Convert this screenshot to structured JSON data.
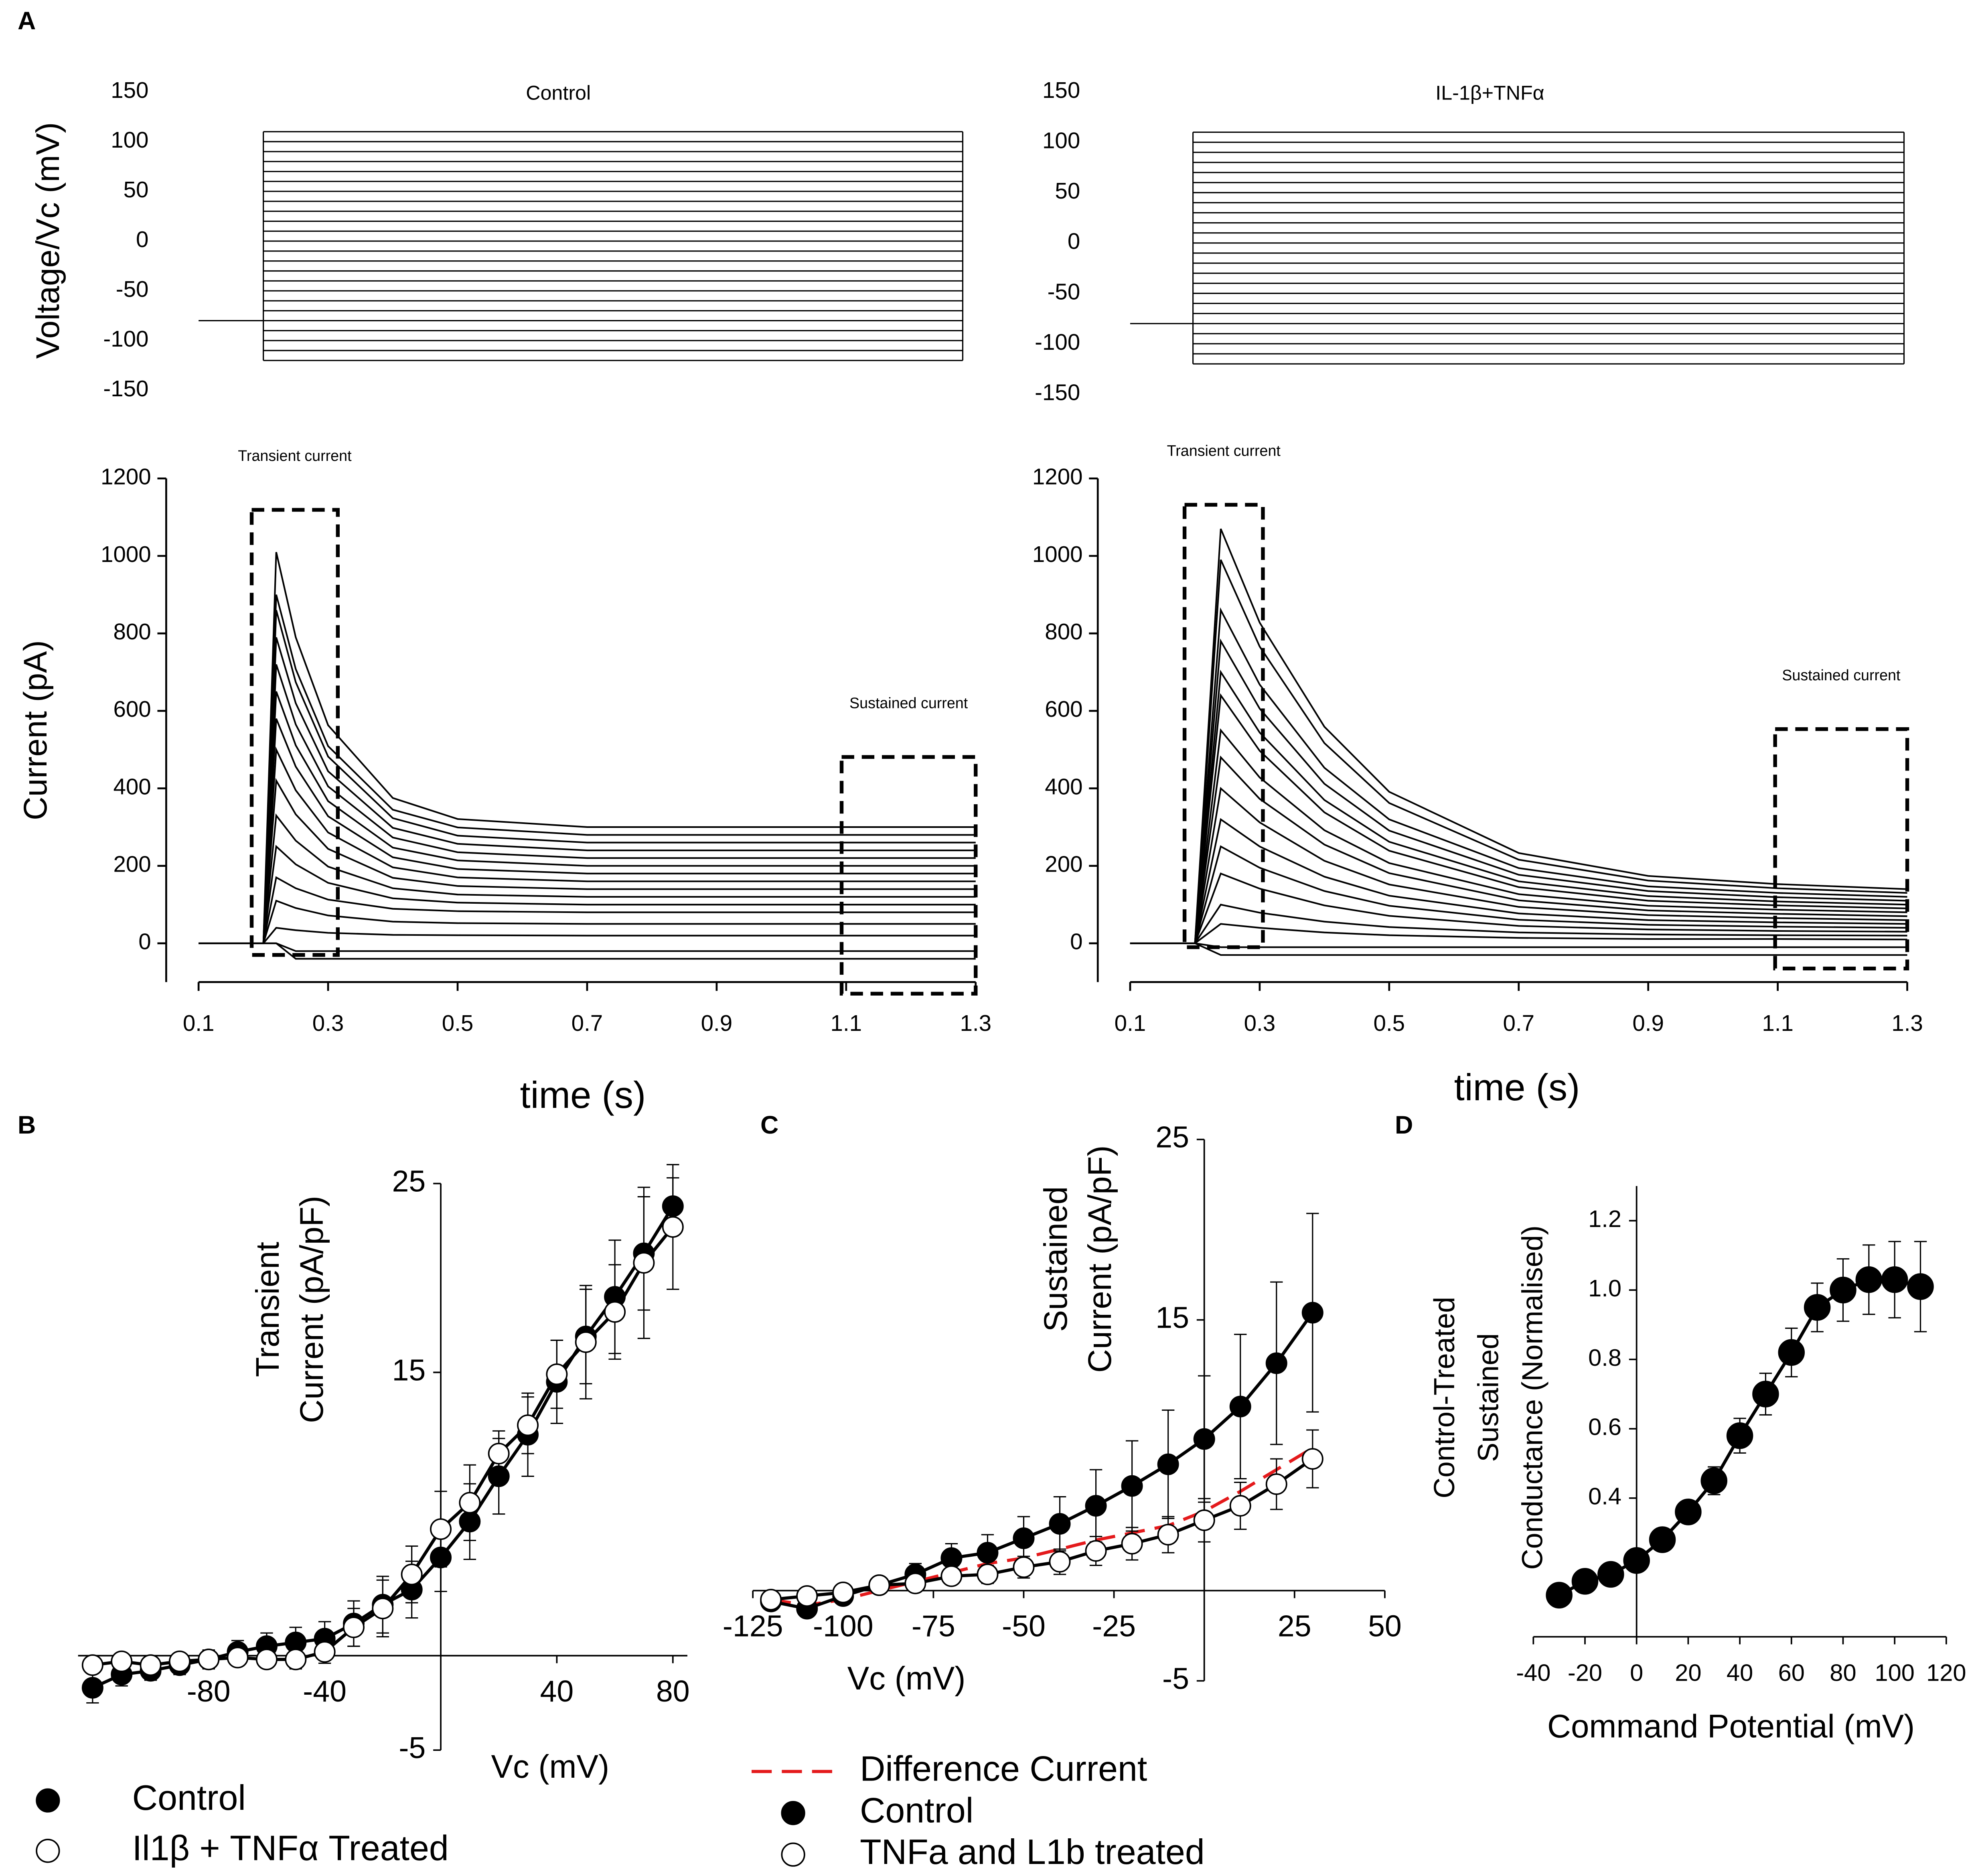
{
  "chart_data": [
    {
      "type": "step_protocol",
      "panel": "A",
      "title": "Control",
      "ylabel": "Voltage/Vc (mV)",
      "xlim": [
        0.05,
        1.3
      ],
      "ylim": [
        -150,
        150
      ],
      "yticks": [
        -150,
        -100,
        -50,
        0,
        50,
        100,
        150
      ],
      "holding": -80,
      "holding_x": [
        0.1,
        0.2
      ],
      "step_x": [
        0.2,
        1.28
      ],
      "steps": [
        -120,
        -110,
        -100,
        -90,
        -80,
        -70,
        -60,
        -50,
        -40,
        -30,
        -20,
        -10,
        0,
        10,
        20,
        30,
        40,
        50,
        60,
        70,
        80,
        90,
        100,
        110
      ],
      "color": "#000000"
    },
    {
      "type": "step_protocol",
      "title": "IL-1β+TNFα",
      "xlim": [
        0.05,
        1.3
      ],
      "ylim": [
        -150,
        150
      ],
      "yticks": [
        -150,
        -100,
        -50,
        0,
        50,
        100,
        150
      ],
      "holding": -80,
      "holding_x": [
        0.1,
        0.197
      ],
      "step_x": [
        0.197,
        1.295
      ],
      "steps": [
        -120,
        -110,
        -100,
        -90,
        -80,
        -70,
        -60,
        -50,
        -40,
        -30,
        -20,
        -10,
        0,
        10,
        20,
        30,
        40,
        50,
        60,
        70,
        80,
        90,
        100,
        110
      ],
      "color": "#000000"
    },
    {
      "type": "line",
      "ylabel": "Current (pA)",
      "xlabel": "time (s)",
      "xlim": [
        0.05,
        1.3
      ],
      "ylim": [
        -100,
        1200
      ],
      "yticks": [
        0,
        200,
        400,
        600,
        800,
        1000,
        1200
      ],
      "xticks": [
        0.1,
        0.3,
        0.5,
        0.7,
        0.9,
        1.1,
        1.3
      ],
      "color": "#000000",
      "x": [
        0.1,
        0.2,
        0.22,
        0.25,
        0.3,
        0.4,
        0.5,
        0.7,
        0.9,
        1.1,
        1.3
      ],
      "series": [
        {
          "values": [
            0,
            0,
            1010,
            790,
            563,
            375,
            321,
            300,
            300,
            300,
            300
          ]
        },
        {
          "values": [
            0,
            0,
            900,
            708,
            509,
            345,
            299,
            280,
            280,
            280,
            280
          ]
        },
        {
          "values": [
            0,
            0,
            860,
            674,
            482,
            323,
            278,
            260,
            260,
            260,
            260
          ]
        },
        {
          "values": [
            0,
            0,
            790,
            620,
            444,
            298,
            257,
            240,
            240,
            240,
            240
          ]
        },
        {
          "values": [
            0,
            0,
            720,
            565,
            405,
            273,
            235,
            220,
            220,
            220,
            220
          ]
        },
        {
          "values": [
            0,
            0,
            650,
            511,
            367,
            247,
            214,
            200,
            200,
            200,
            200
          ]
        },
        {
          "values": [
            0,
            0,
            580,
            456,
            328,
            222,
            192,
            180,
            180,
            180,
            180
          ]
        },
        {
          "values": [
            0,
            0,
            500,
            395,
            286,
            196,
            170,
            160,
            160,
            160,
            160
          ]
        },
        {
          "values": [
            0,
            0,
            420,
            333,
            244,
            169,
            148,
            140,
            140,
            140,
            140
          ]
        },
        {
          "values": [
            0,
            0,
            330,
            265,
            198,
            142,
            126,
            120,
            120,
            120,
            120
          ]
        },
        {
          "values": [
            0,
            0,
            250,
            204,
            156,
            116,
            105,
            100,
            100,
            100,
            100
          ]
        },
        {
          "values": [
            0,
            0,
            170,
            142,
            113,
            89,
            83,
            80,
            80,
            80,
            80
          ]
        },
        {
          "values": [
            0,
            0,
            110,
            91,
            72,
            56,
            52,
            50,
            50,
            50,
            50
          ]
        },
        {
          "values": [
            0,
            0,
            40,
            34,
            27,
            22,
            21,
            20,
            20,
            20,
            20
          ]
        },
        {
          "values": [
            0,
            0,
            0,
            -20,
            -20,
            -20,
            -20,
            -20,
            -20,
            -20,
            -20
          ]
        },
        {
          "values": [
            0,
            0,
            0,
            -40,
            -40,
            -40,
            -40,
            -40,
            -40,
            -40,
            -40
          ]
        }
      ],
      "boxes": [
        {
          "label": "Transient current",
          "x": [
            0.182,
            0.315
          ],
          "y": [
            -30,
            1119
          ]
        },
        {
          "label": "Sustained current",
          "x": [
            1.093,
            1.3
          ],
          "y": [
            -130,
            481
          ]
        }
      ]
    },
    {
      "type": "line",
      "xlabel": "time (s)",
      "xlim": [
        0.05,
        1.3
      ],
      "ylim": [
        -100,
        1200
      ],
      "yticks": [
        0,
        200,
        400,
        600,
        800,
        1000,
        1200
      ],
      "xticks": [
        0.1,
        0.3,
        0.5,
        0.7,
        0.9,
        1.1,
        1.3
      ],
      "color": "#000000",
      "x": [
        0.1,
        0.2,
        0.24,
        0.3,
        0.4,
        0.5,
        0.7,
        0.9,
        1.1,
        1.3
      ],
      "series": [
        {
          "values": [
            0,
            0,
            1070,
            828,
            559,
            391,
            233,
            174,
            153,
            140
          ]
        },
        {
          "values": [
            0,
            0,
            990,
            766,
            517,
            362,
            216,
            162,
            142,
            130
          ]
        },
        {
          "values": [
            0,
            0,
            860,
            668,
            453,
            320,
            194,
            147,
            130,
            120
          ]
        },
        {
          "values": [
            0,
            0,
            780,
            606,
            412,
            291,
            177,
            135,
            119,
            110
          ]
        },
        {
          "values": [
            0,
            0,
            700,
            544,
            370,
            262,
            160,
            122,
            108,
            100
          ]
        },
        {
          "values": [
            0,
            0,
            640,
            497,
            338,
            239,
            145,
            110,
            98,
            90
          ]
        },
        {
          "values": [
            0,
            0,
            550,
            428,
            292,
            207,
            127,
            97,
            87,
            80
          ]
        },
        {
          "values": [
            0,
            0,
            480,
            373,
            255,
            181,
            111,
            85,
            76,
            70
          ]
        },
        {
          "values": [
            0,
            0,
            400,
            312,
            213,
            152,
            94,
            73,
            65,
            60
          ]
        },
        {
          "values": [
            0,
            0,
            320,
            250,
            172,
            123,
            77,
            60,
            54,
            50
          ]
        },
        {
          "values": [
            0,
            0,
            250,
            195,
            135,
            97,
            61,
            48,
            43,
            40
          ]
        },
        {
          "values": [
            0,
            0,
            180,
            141,
            98,
            71,
            45,
            36,
            32,
            30
          ]
        },
        {
          "values": [
            0,
            0,
            100,
            79,
            56,
            42,
            28,
            23,
            21,
            20
          ]
        },
        {
          "values": [
            0,
            0,
            50,
            40,
            28,
            21,
            14,
            11,
            11,
            10
          ]
        },
        {
          "values": [
            0,
            0,
            -10,
            -10,
            -10,
            -10,
            -10,
            -10,
            -10,
            -10
          ]
        },
        {
          "values": [
            0,
            0,
            -30,
            -30,
            -30,
            -30,
            -30,
            -30,
            -30,
            -30
          ]
        }
      ],
      "boxes": [
        {
          "label": "Transient current",
          "x": [
            0.184,
            0.305
          ],
          "y": [
            -10,
            1132
          ]
        },
        {
          "label": "Sustained current",
          "x": [
            1.096,
            1.3
          ],
          "y": [
            -65,
            553
          ]
        }
      ]
    },
    {
      "type": "scatter",
      "panel": "B",
      "ylabel": [
        "Transient",
        "Current (pA/pF)"
      ],
      "xlabel": "Vc (mV)",
      "xlim": [
        -125,
        85
      ],
      "ylim": [
        -5,
        25
      ],
      "xticks": [
        -80,
        -40,
        40,
        80
      ],
      "yticks": [
        -5,
        15,
        25
      ],
      "x": [
        -120,
        -110,
        -100,
        -90,
        -80,
        -70,
        -60,
        -50,
        -40,
        -30,
        -20,
        -10,
        0,
        10,
        20,
        30,
        40,
        50,
        60,
        70,
        80
      ],
      "series": [
        {
          "name": "Control",
          "color": "#000000",
          "marker": "filled",
          "values": [
            -1.7,
            -1.0,
            -0.8,
            -0.5,
            -0.2,
            0.2,
            0.5,
            0.7,
            0.9,
            1.7,
            2.7,
            3.5,
            5.2,
            7.1,
            9.5,
            11.7,
            14.5,
            16.9,
            19.0,
            21.3,
            23.8
          ],
          "errors": [
            0.8,
            0.6,
            0.5,
            0.5,
            0.5,
            0.6,
            0.7,
            0.8,
            0.9,
            1.2,
            1.5,
            1.5,
            1.8,
            2.0,
            2.0,
            2.2,
            2.2,
            2.5,
            3.0,
            3.0,
            1.5
          ]
        },
        {
          "name": "Il1β + TNFα Treated",
          "color": "#000000",
          "marker": "open",
          "values": [
            -0.5,
            -0.3,
            -0.5,
            -0.3,
            -0.2,
            -0.1,
            -0.2,
            -0.2,
            0.2,
            1.5,
            2.5,
            4.3,
            6.7,
            8.1,
            10.7,
            12.2,
            14.9,
            16.6,
            18.2,
            20.8,
            22.7
          ],
          "errors": [
            0.4,
            0.4,
            0.4,
            0.4,
            0.4,
            0.4,
            0.4,
            0.5,
            0.6,
            1.0,
            1.5,
            1.5,
            2.0,
            2.0,
            1.2,
            1.5,
            1.8,
            3.0,
            2.5,
            4.0,
            3.3
          ]
        }
      ]
    },
    {
      "type": "scatter",
      "panel": "C",
      "ylabel": [
        "Sustained",
        "Current (pA/pF)"
      ],
      "xlabel": "Vc (mV)",
      "xlim": [
        -125,
        50
      ],
      "ylim": [
        -5,
        25
      ],
      "xticks": [
        -125,
        -100,
        -75,
        -50,
        -25,
        25,
        50
      ],
      "yticks": [
        -5,
        15,
        25
      ],
      "x": [
        -120,
        -110,
        -100,
        -90,
        -80,
        -70,
        -60,
        -50,
        -40,
        -30,
        -20,
        -10,
        0,
        10,
        20,
        30
      ],
      "series": [
        {
          "name": "Difference Current",
          "color": "#e41a1c",
          "marker": "none",
          "dashed": true,
          "values": [
            -0.5,
            -0.8,
            -0.5,
            0,
            0.5,
            1.0,
            1.5,
            1.8,
            2.3,
            2.8,
            3.2,
            3.6,
            4.4,
            5.5,
            6.7,
            7.9
          ]
        },
        {
          "name": "Control",
          "color": "#000000",
          "marker": "filled",
          "values": [
            -0.6,
            -1.0,
            -0.3,
            0.3,
            0.9,
            1.8,
            2.1,
            2.9,
            3.7,
            4.7,
            5.8,
            7.0,
            8.4,
            10.2,
            12.6,
            15.4
          ],
          "errors": [
            0.3,
            0.3,
            0.4,
            0.4,
            0.6,
            0.8,
            1.0,
            1.2,
            1.5,
            2.0,
            2.5,
            3.0,
            3.5,
            4.0,
            4.5,
            5.5
          ]
        },
        {
          "name": "TNFa and L1b treated",
          "color": "#000000",
          "marker": "open",
          "values": [
            -0.5,
            -0.3,
            -0.1,
            0.3,
            0.4,
            0.8,
            0.9,
            1.3,
            1.6,
            2.2,
            2.6,
            3.1,
            3.9,
            4.7,
            5.9,
            7.3
          ],
          "errors": [
            0.3,
            0.3,
            0.3,
            0.3,
            0.4,
            0.4,
            0.5,
            0.6,
            0.7,
            0.8,
            0.9,
            1.0,
            1.2,
            1.3,
            1.4,
            1.6
          ]
        }
      ]
    },
    {
      "type": "scatter",
      "panel": "D",
      "ylabel": [
        "Control-Treated",
        "Sustained",
        "Conductance (Normalised)"
      ],
      "xlabel": "Command Potential (mV)",
      "xlim": [
        -40,
        120
      ],
      "ylim": [
        0,
        1.3
      ],
      "xticks": [
        -40,
        -20,
        0,
        20,
        40,
        60,
        80,
        100,
        120
      ],
      "yticks": [
        0.4,
        0.6,
        0.8,
        {
          "value": 1,
          "label": "1.0"
        },
        1.2
      ],
      "x": [
        -30,
        -20,
        -10,
        0,
        10,
        20,
        30,
        40,
        50,
        60,
        70,
        80,
        90,
        100,
        110
      ],
      "series": [
        {
          "color": "#000000",
          "marker": "filled",
          "values": [
            0.12,
            0.16,
            0.18,
            0.22,
            0.28,
            0.36,
            0.45,
            0.58,
            0.7,
            0.82,
            0.95,
            1.0,
            1.03,
            1.03,
            1.01
          ],
          "errors": [
            0.03,
            0.03,
            0.03,
            0.03,
            0.03,
            0.03,
            0.04,
            0.05,
            0.06,
            0.07,
            0.07,
            0.09,
            0.1,
            0.11,
            0.13
          ]
        }
      ]
    }
  ]
}
